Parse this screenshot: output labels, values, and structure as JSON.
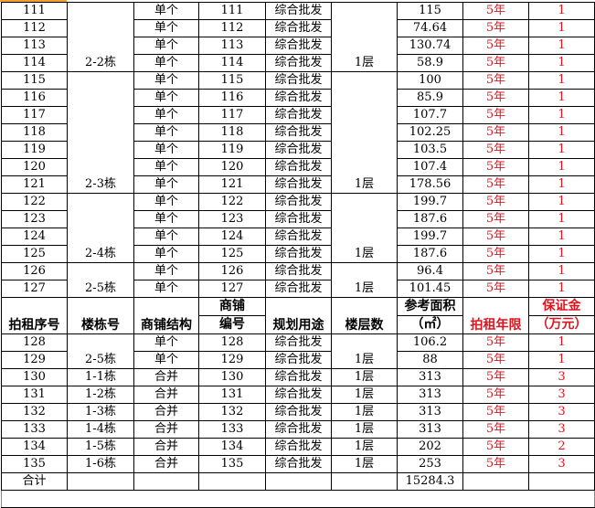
{
  "columns": {
    "no": "拍租序号",
    "building": "楼栋号",
    "structure": "商铺结构",
    "shop_no_top": "商铺",
    "shop_no_bottom": "编号",
    "use": "规划用途",
    "floor": "楼层数",
    "area_top": "参考面积",
    "area_bottom": "（㎡）",
    "term": "拍租年限",
    "deposit_top": "保证金",
    "deposit_bottom": "（万元）"
  },
  "section1": [
    {
      "building": "2-2栋",
      "floor": "1层",
      "rows": [
        [
          "111",
          "单个",
          "111",
          "综合批发",
          "115",
          "5年",
          "1"
        ],
        [
          "112",
          "单个",
          "112",
          "综合批发",
          "74.64",
          "5年",
          "1"
        ],
        [
          "113",
          "单个",
          "113",
          "综合批发",
          "130.74",
          "5年",
          "1"
        ],
        [
          "114",
          "单个",
          "114",
          "综合批发",
          "58.9",
          "5年",
          "1"
        ]
      ]
    },
    {
      "building": "2-3栋",
      "floor": "1层",
      "rows": [
        [
          "115",
          "单个",
          "115",
          "综合批发",
          "100",
          "5年",
          "1"
        ],
        [
          "116",
          "单个",
          "116",
          "综合批发",
          "85.9",
          "5年",
          "1"
        ],
        [
          "117",
          "单个",
          "117",
          "综合批发",
          "107.7",
          "5年",
          "1"
        ],
        [
          "118",
          "单个",
          "118",
          "综合批发",
          "102.25",
          "5年",
          "1"
        ],
        [
          "119",
          "单个",
          "119",
          "综合批发",
          "103.5",
          "5年",
          "1"
        ],
        [
          "120",
          "单个",
          "120",
          "综合批发",
          "107.4",
          "5年",
          "1"
        ],
        [
          "121",
          "单个",
          "121",
          "综合批发",
          "178.56",
          "5年",
          "1"
        ]
      ]
    },
    {
      "building": "2-4栋",
      "floor": "1层",
      "rows": [
        [
          "122",
          "单个",
          "122",
          "综合批发",
          "199.7",
          "5年",
          "1"
        ],
        [
          "123",
          "单个",
          "123",
          "综合批发",
          "187.6",
          "5年",
          "1"
        ],
        [
          "124",
          "单个",
          "124",
          "综合批发",
          "199.7",
          "5年",
          "1"
        ],
        [
          "125",
          "单个",
          "125",
          "综合批发",
          "187.6",
          "5年",
          "1"
        ]
      ]
    },
    {
      "building": "2-5栋",
      "floor": "1层",
      "rows": [
        [
          "126",
          "单个",
          "126",
          "综合批发",
          "96.4",
          "5年",
          "1"
        ],
        [
          "127",
          "单个",
          "127",
          "综合批发",
          "101.45",
          "5年",
          "1"
        ]
      ]
    }
  ],
  "section2": [
    {
      "building": "2-5栋",
      "floor": "1层",
      "rows": [
        [
          "128",
          "单个",
          "128",
          "综合批发",
          "106.2",
          "5年",
          "1"
        ],
        [
          "129",
          "单个",
          "129",
          "综合批发",
          "88",
          "5年",
          "1"
        ]
      ]
    },
    {
      "building": "1-1栋",
      "floor": "1层",
      "rows": [
        [
          "130",
          "合并",
          "130",
          "综合批发",
          "313",
          "5年",
          "3"
        ]
      ]
    },
    {
      "building": "1-2栋",
      "floor": "1层",
      "rows": [
        [
          "131",
          "合并",
          "131",
          "综合批发",
          "313",
          "5年",
          "3"
        ]
      ]
    },
    {
      "building": "1-3栋",
      "floor": "1层",
      "rows": [
        [
          "132",
          "合并",
          "132",
          "综合批发",
          "313",
          "5年",
          "3"
        ]
      ]
    },
    {
      "building": "1-4栋",
      "floor": "1层",
      "rows": [
        [
          "133",
          "合并",
          "133",
          "综合批发",
          "313",
          "5年",
          "3"
        ]
      ]
    },
    {
      "building": "1-5栋",
      "floor": "1层",
      "rows": [
        [
          "134",
          "合并",
          "134",
          "综合批发",
          "202",
          "5年",
          "2"
        ]
      ]
    },
    {
      "building": "1-6栋",
      "floor": "1层",
      "rows": [
        [
          "135",
          "合并",
          "135",
          "综合批发",
          "253",
          "5年",
          "3"
        ]
      ]
    }
  ],
  "total": {
    "label": "合计",
    "area": "15284.3"
  },
  "colors": {
    "red": "#e0141e",
    "selection": "#f0a030"
  }
}
